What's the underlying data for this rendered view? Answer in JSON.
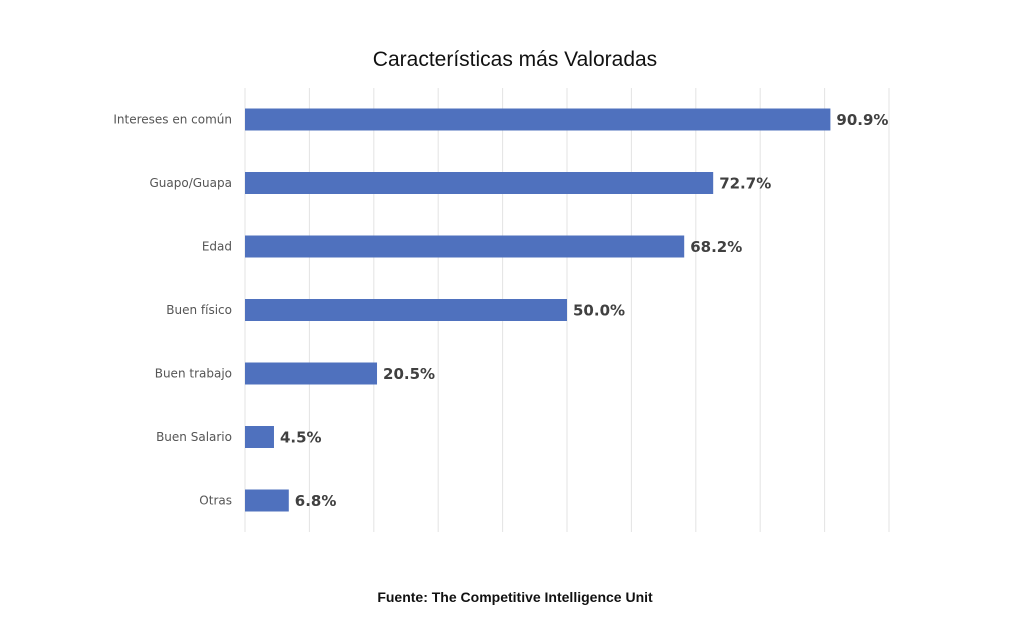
{
  "chart_data": {
    "type": "bar",
    "orientation": "horizontal",
    "title": "Características más Valoradas",
    "categories": [
      "Intereses en común",
      "Guapo/Guapa",
      "Edad",
      "Buen físico",
      "Buen trabajo",
      "Buen Salario",
      "Otras"
    ],
    "values": [
      90.9,
      72.7,
      68.2,
      50.0,
      20.5,
      4.5,
      6.8
    ],
    "data_labels": [
      "90.9%",
      "72.7%",
      "68.2%",
      "50.0%",
      "20.5%",
      "4.5%",
      "6.8%"
    ],
    "xlim": [
      0,
      100
    ],
    "grid": true,
    "legend": "none",
    "bar_color": "#4f71be",
    "source": "Fuente: The Competitive Intelligence Unit"
  }
}
